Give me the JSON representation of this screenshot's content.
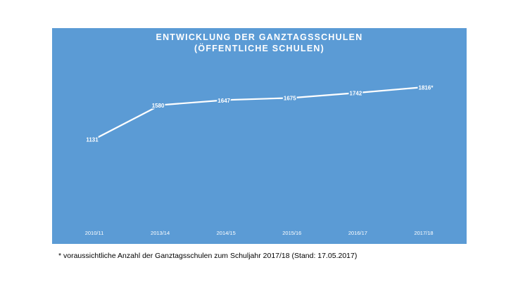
{
  "chart_data": {
    "type": "line",
    "title_lines": [
      "ENTWICKLUNG  DER  GANZTAGSSCHULEN",
      "(ÖFFENTLICHE  SCHULEN)"
    ],
    "categories": [
      "2010/11",
      "2013/14",
      "2014/15",
      "2015/16",
      "2016/17",
      "2017/18"
    ],
    "values": [
      1131,
      1580,
      1647,
      1675,
      1742,
      1816
    ],
    "value_labels": [
      "1131",
      "1580",
      "1647",
      "1675",
      "1742",
      "1816*"
    ],
    "xlabel": "",
    "ylabel": "",
    "ylim": [
      900,
      1900
    ],
    "grid": false,
    "legend": "none",
    "colors": {
      "background": "#5b9bd5",
      "line": "#ffffff",
      "text": "#ffffff"
    }
  },
  "footnote": "* voraussichtliche Anzahl der Ganztagsschulen  zum  Schuljahr 2017/18 (Stand: 17.05.2017)"
}
